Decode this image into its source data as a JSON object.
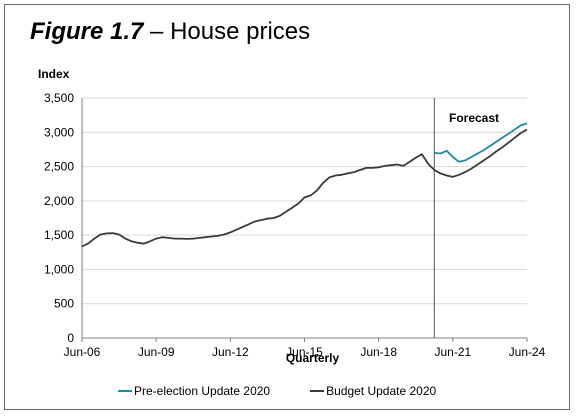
{
  "title": {
    "figure": "Figure 1.7",
    "dash": "–",
    "text": "House prices"
  },
  "colors": {
    "pre_election": "#1f8aa6",
    "budget": "#3a3a3a",
    "grid": "#d9d9d9",
    "axis": "#7f7f7f"
  },
  "chart_data": {
    "type": "line",
    "title": "Figure 1.7 – House prices",
    "xlabel": "Quarterly",
    "ylabel": "Index",
    "ylim": [
      0,
      3500
    ],
    "yticks": [
      "0",
      "500",
      "1,000",
      "1,500",
      "2,000",
      "2,500",
      "3,000",
      "3,500"
    ],
    "xticks": [
      "Jun-06",
      "Jun-09",
      "Jun-12",
      "Jun-15",
      "Jun-18",
      "Jun-21",
      "Jun-24"
    ],
    "grid": "horizontal",
    "annotation": "Forecast",
    "forecast_start": "Sep-20",
    "legend_position": "bottom",
    "series": [
      {
        "name": "Pre-election Update 2020",
        "x": [
          "Sep-20",
          "Dec-20",
          "Mar-21",
          "Jun-21",
          "Sep-21",
          "Dec-21",
          "Mar-22",
          "Jun-22",
          "Sep-22",
          "Dec-22",
          "Mar-23",
          "Jun-23",
          "Sep-23",
          "Dec-23",
          "Mar-24",
          "Jun-24"
        ],
        "values": [
          2700,
          2690,
          2730,
          2640,
          2570,
          2590,
          2640,
          2690,
          2740,
          2800,
          2860,
          2920,
          2980,
          3040,
          3100,
          3130
        ]
      },
      {
        "name": "Budget Update 2020",
        "x": [
          "Jun-06",
          "Sep-06",
          "Dec-06",
          "Mar-07",
          "Jun-07",
          "Sep-07",
          "Dec-07",
          "Mar-08",
          "Jun-08",
          "Sep-08",
          "Dec-08",
          "Mar-09",
          "Jun-09",
          "Sep-09",
          "Dec-09",
          "Mar-10",
          "Jun-10",
          "Sep-10",
          "Dec-10",
          "Mar-11",
          "Jun-11",
          "Sep-11",
          "Dec-11",
          "Mar-12",
          "Jun-12",
          "Sep-12",
          "Dec-12",
          "Mar-13",
          "Jun-13",
          "Sep-13",
          "Dec-13",
          "Mar-14",
          "Jun-14",
          "Sep-14",
          "Dec-14",
          "Mar-15",
          "Jun-15",
          "Sep-15",
          "Dec-15",
          "Mar-16",
          "Jun-16",
          "Sep-16",
          "Dec-16",
          "Mar-17",
          "Jun-17",
          "Sep-17",
          "Dec-17",
          "Mar-18",
          "Jun-18",
          "Sep-18",
          "Dec-18",
          "Mar-19",
          "Jun-19",
          "Sep-19",
          "Dec-19",
          "Mar-20",
          "Jun-20",
          "Sep-20",
          "Dec-20",
          "Mar-21",
          "Jun-21",
          "Sep-21",
          "Dec-21",
          "Mar-22",
          "Jun-22",
          "Sep-22",
          "Dec-22",
          "Mar-23",
          "Jun-23",
          "Sep-23",
          "Dec-23",
          "Mar-24",
          "Jun-24"
        ],
        "values": [
          1335,
          1380,
          1450,
          1510,
          1525,
          1530,
          1510,
          1450,
          1410,
          1390,
          1375,
          1410,
          1450,
          1470,
          1460,
          1450,
          1450,
          1445,
          1450,
          1460,
          1470,
          1480,
          1490,
          1510,
          1540,
          1580,
          1620,
          1660,
          1700,
          1720,
          1740,
          1750,
          1780,
          1840,
          1900,
          1960,
          2050,
          2080,
          2150,
          2260,
          2340,
          2370,
          2380,
          2400,
          2420,
          2450,
          2480,
          2480,
          2490,
          2510,
          2520,
          2530,
          2510,
          2570,
          2630,
          2680,
          2540,
          2450,
          2400,
          2370,
          2350,
          2380,
          2420,
          2470,
          2530,
          2590,
          2650,
          2720,
          2780,
          2850,
          2920,
          2990,
          3040
        ]
      }
    ]
  }
}
